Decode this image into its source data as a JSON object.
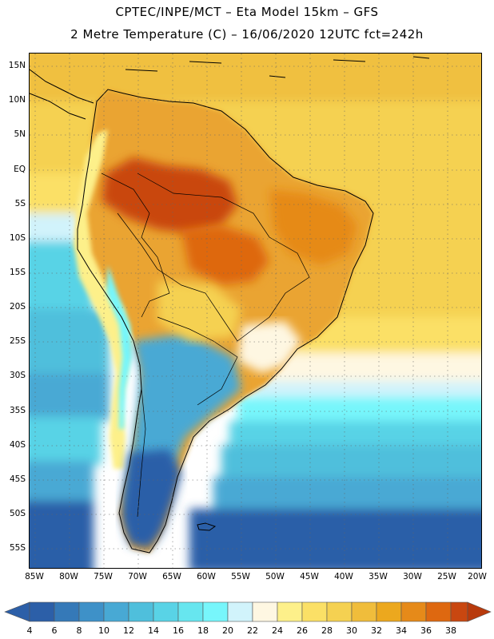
{
  "header": {
    "line1": "CPTEC/INPE/MCT –  Eta Model 15km – GFS",
    "line2": "2 Metre Temperature (C) – 16/06/2020 12UTC fct=242h"
  },
  "map": {
    "lon_range": [
      -85,
      -20
    ],
    "lat_range": [
      -58,
      17
    ],
    "latitude_labels": [
      "15N",
      "10N",
      "5N",
      "EQ",
      "5S",
      "10S",
      "15S",
      "20S",
      "25S",
      "30S",
      "35S",
      "40S",
      "45S",
      "50S",
      "55S"
    ],
    "longitude_labels": [
      "85W",
      "80W",
      "75W",
      "70W",
      "65W",
      "60W",
      "55W",
      "50W",
      "45W",
      "40W",
      "35W",
      "30W",
      "25W",
      "20W"
    ],
    "variable": "2 Metre Temperature",
    "units": "C"
  },
  "colorbar": {
    "values": [
      "4",
      "6",
      "8",
      "10",
      "12",
      "14",
      "16",
      "18",
      "20",
      "22",
      "24",
      "26",
      "28",
      "30",
      "32",
      "34",
      "36",
      "38"
    ],
    "colors": [
      "#2c5fa8",
      "#3579b8",
      "#3e91c8",
      "#48a9d4",
      "#4fbfdc",
      "#59d3e6",
      "#67e6ef",
      "#77f6fb",
      "#d1f3fb",
      "#fef7e2",
      "#fdf08a",
      "#fbe066",
      "#f5d151",
      "#f0bd3b",
      "#eca81e",
      "#e68a19",
      "#de6810",
      "#c94710",
      "#b83a0c"
    ]
  }
}
